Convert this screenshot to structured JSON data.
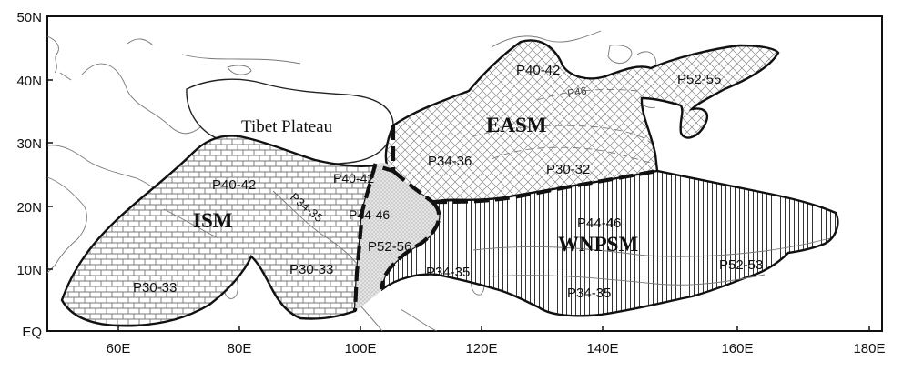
{
  "map": {
    "y_ticks": [
      "50N",
      "40N",
      "30N",
      "20N",
      "10N",
      "EQ"
    ],
    "x_ticks": [
      "60E",
      "80E",
      "100E",
      "120E",
      "140E",
      "160E",
      "180E"
    ],
    "feature": "Tibet Plateau",
    "systems": {
      "ism": "ISM",
      "easm": "EASM",
      "wnpsm": "WNPSM"
    },
    "periods": {
      "ism_north": "P40-42",
      "ism_band": "P34-35",
      "ism_south": "P30-33",
      "ism_east_south": "P30-33",
      "trans_north": "P40-42",
      "trans_mid": "P44-46",
      "trans_south": "P52-56",
      "easm_north": "P40-42",
      "easm_46": "P46",
      "easm_south": "P34-36",
      "easm_east": "P30-32",
      "japan": "P52-55",
      "wnp_north": "P44-46",
      "wnp_west": "P34-35",
      "wnp_south": "P34-35",
      "wnp_east": "P52-53"
    }
  }
}
